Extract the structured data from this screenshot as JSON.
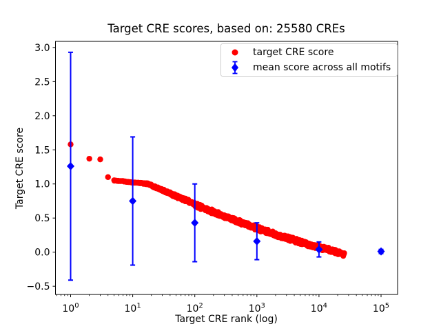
{
  "chart_data": {
    "type": "scatter",
    "title": "Target CRE scores, based on: 25580 CREs",
    "xlabel": "Target CRE rank (log)",
    "ylabel": "Target CRE score",
    "x_scale": "log",
    "xlim": [
      0.57,
      184600
    ],
    "ylim": [
      -0.62,
      3.09
    ],
    "grid": false,
    "background": "#ffffff",
    "axis_color": "#000000",
    "yticks": [
      {
        "v": 3.0,
        "label": "3.0"
      },
      {
        "v": 2.5,
        "label": "2.5"
      },
      {
        "v": 2.0,
        "label": "2.0"
      },
      {
        "v": 1.5,
        "label": "1.5"
      },
      {
        "v": 1.0,
        "label": "1.0"
      },
      {
        "v": 0.5,
        "label": "0.5"
      },
      {
        "v": 0.0,
        "label": "0.0"
      },
      {
        "v": -0.5,
        "label": "−0.5"
      }
    ],
    "xticks": [
      {
        "v": 1,
        "base": "10",
        "exp": "0"
      },
      {
        "v": 10,
        "base": "10",
        "exp": "1"
      },
      {
        "v": 100,
        "base": "10",
        "exp": "2"
      },
      {
        "v": 1000,
        "base": "10",
        "exp": "3"
      },
      {
        "v": 10000,
        "base": "10",
        "exp": "4"
      },
      {
        "v": 100000,
        "base": "10",
        "exp": "5"
      }
    ],
    "series": [
      {
        "name": "target CRE score",
        "color": "#ff0000",
        "marker": "circle",
        "total_points": 25580,
        "head_points": [
          [
            1,
            1.58
          ],
          [
            2,
            1.37
          ],
          [
            3,
            1.36
          ],
          [
            4,
            1.1
          ]
        ],
        "curve_anchors": [
          [
            5,
            1.05
          ],
          [
            7,
            1.04
          ],
          [
            10,
            1.02
          ],
          [
            14,
            1.01
          ],
          [
            18,
            1.0
          ],
          [
            22,
            0.96
          ],
          [
            30,
            0.91
          ],
          [
            40,
            0.86
          ],
          [
            50,
            0.82
          ],
          [
            70,
            0.77
          ],
          [
            100,
            0.7
          ],
          [
            140,
            0.64
          ],
          [
            200,
            0.59
          ],
          [
            300,
            0.53
          ],
          [
            500,
            0.45
          ],
          [
            700,
            0.4
          ],
          [
            1000,
            0.35
          ],
          [
            1500,
            0.3
          ],
          [
            2000,
            0.26
          ],
          [
            3000,
            0.21
          ],
          [
            5000,
            0.15
          ],
          [
            7000,
            0.11
          ],
          [
            10000,
            0.07
          ],
          [
            14000,
            0.04
          ],
          [
            20000,
            0.0
          ],
          [
            25580,
            -0.03
          ]
        ]
      },
      {
        "name": "mean score across all motifs",
        "color": "#0000ff",
        "marker": "diamond",
        "points": [
          {
            "rank": 1,
            "mean": 1.26,
            "err": 1.67
          },
          {
            "rank": 10,
            "mean": 0.75,
            "err": 0.94
          },
          {
            "rank": 100,
            "mean": 0.43,
            "err": 0.57
          },
          {
            "rank": 1000,
            "mean": 0.16,
            "err": 0.27
          },
          {
            "rank": 10000,
            "mean": 0.04,
            "err": 0.11
          },
          {
            "rank": 100000,
            "mean": 0.01,
            "err": 0.03
          }
        ]
      }
    ],
    "legend": {
      "position": "upper right",
      "entries": [
        {
          "label": "target CRE score",
          "marker": "circle",
          "color": "#ff0000"
        },
        {
          "label": "mean score across all motifs",
          "marker": "diamond-errorbar",
          "color": "#0000ff"
        }
      ]
    }
  }
}
